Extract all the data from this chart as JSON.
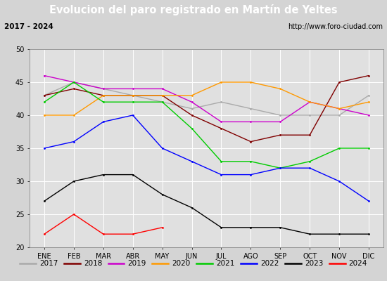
{
  "title": "Evolucion del paro registrado en Martín de Yeltes",
  "subtitle_left": "2017 - 2024",
  "subtitle_right": "http://www.foro-ciudad.com",
  "months": [
    "ENE",
    "FEB",
    "MAR",
    "ABR",
    "MAY",
    "JUN",
    "JUL",
    "AGO",
    "SEP",
    "OCT",
    "NOV",
    "DIC"
  ],
  "ylim": [
    20,
    50
  ],
  "yticks": [
    20,
    25,
    30,
    35,
    40,
    45,
    50
  ],
  "series": {
    "2017": {
      "color": "#aaaaaa",
      "data": [
        43,
        45,
        44,
        43,
        42,
        41,
        42,
        41,
        40,
        40,
        40,
        43
      ]
    },
    "2018": {
      "color": "#800000",
      "data": [
        43,
        44,
        43,
        43,
        43,
        40,
        38,
        36,
        37,
        37,
        45,
        46
      ]
    },
    "2019": {
      "color": "#cc00cc",
      "data": [
        46,
        45,
        44,
        44,
        44,
        42,
        39,
        39,
        39,
        42,
        41,
        40
      ]
    },
    "2020": {
      "color": "#ff9900",
      "data": [
        40,
        40,
        43,
        43,
        43,
        43,
        45,
        45,
        44,
        42,
        41,
        42
      ]
    },
    "2021": {
      "color": "#00cc00",
      "data": [
        42,
        45,
        42,
        42,
        42,
        38,
        33,
        33,
        32,
        33,
        35,
        35
      ]
    },
    "2022": {
      "color": "#0000ff",
      "data": [
        35,
        36,
        39,
        40,
        35,
        33,
        31,
        31,
        32,
        32,
        30,
        27
      ]
    },
    "2023": {
      "color": "#000000",
      "data": [
        27,
        30,
        31,
        31,
        28,
        26,
        23,
        23,
        23,
        22,
        22,
        22
      ]
    },
    "2024": {
      "color": "#ff0000",
      "data": [
        22,
        25,
        22,
        22,
        23,
        null,
        null,
        null,
        null,
        null,
        null,
        null
      ]
    }
  },
  "background_color": "#d4d4d4",
  "plot_bg_color": "#e0e0e0",
  "title_bg_color": "#4472c4",
  "title_color": "#ffffff",
  "subtitle_bg_color": "#d4d4d4",
  "subtitle_color": "#000000",
  "grid_color": "#ffffff",
  "legend_bg_color": "#e8e8e8"
}
